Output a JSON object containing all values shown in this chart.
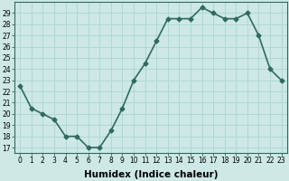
{
  "xlabel": "Humidex (Indice chaleur)",
  "ylabel": "",
  "x": [
    0,
    1,
    2,
    3,
    4,
    5,
    6,
    7,
    8,
    9,
    10,
    11,
    12,
    13,
    14,
    15,
    16,
    17,
    18,
    19,
    20,
    21,
    22,
    23
  ],
  "y": [
    22.5,
    20.5,
    20.0,
    19.5,
    18.0,
    18.0,
    17.0,
    17.0,
    18.5,
    20.5,
    23.0,
    24.5,
    26.5,
    28.5,
    28.5,
    28.5,
    29.5,
    29.0,
    28.5,
    28.5,
    29.0,
    27.0,
    24.0,
    23.0
  ],
  "line_color": "#2e6b5e",
  "marker": "D",
  "marker_size": 2.5,
  "bg_color": "#cde8e5",
  "grid_color": "#b0d8d4",
  "ylim_min": 16.5,
  "ylim_max": 30.0,
  "yticks": [
    17,
    18,
    19,
    20,
    21,
    22,
    23,
    24,
    25,
    26,
    27,
    28,
    29
  ],
  "xticks": [
    0,
    1,
    2,
    3,
    4,
    5,
    6,
    7,
    8,
    9,
    10,
    11,
    12,
    13,
    14,
    15,
    16,
    17,
    18,
    19,
    20,
    21,
    22,
    23
  ],
  "tick_fontsize": 5.5,
  "xlabel_fontsize": 7.5,
  "linewidth": 1.2
}
